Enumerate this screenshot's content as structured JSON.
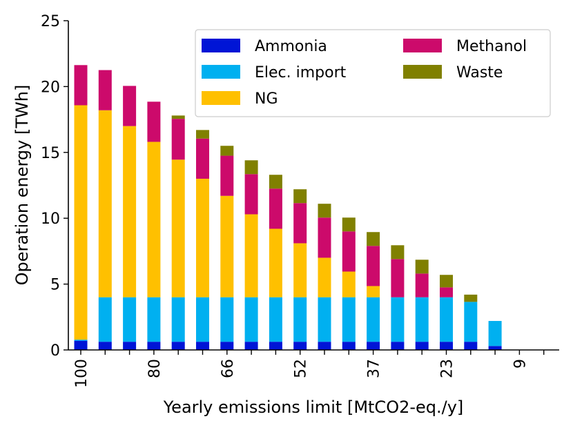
{
  "chart_data": {
    "type": "bar",
    "stacked": true,
    "title": "",
    "xlabel": "Yearly emissions limit [MtCO2-eq./y]",
    "ylabel": "Operation energy [TWh]",
    "ylim": [
      0,
      25
    ],
    "yticks": [
      0,
      5,
      10,
      15,
      20,
      25
    ],
    "x_tick_labels": [
      "100",
      "",
      "",
      "80",
      "",
      "",
      "66",
      "",
      "",
      "52",
      "",
      "",
      "37",
      "",
      "",
      "23",
      "",
      "",
      "9",
      ""
    ],
    "categories_count": 20,
    "legend_position": "top-right",
    "grid": false,
    "series": [
      {
        "name": "Ammonia",
        "color": "#0015d6",
        "values": [
          0.7,
          0.62,
          0.62,
          0.62,
          0.62,
          0.62,
          0.62,
          0.62,
          0.62,
          0.62,
          0.62,
          0.62,
          0.62,
          0.62,
          0.62,
          0.62,
          0.62,
          0.3,
          0,
          0
        ]
      },
      {
        "name": "Elec. import",
        "color": "#00b0f0",
        "values": [
          0.08,
          3.38,
          3.38,
          3.38,
          3.38,
          3.38,
          3.38,
          3.38,
          3.38,
          3.38,
          3.38,
          3.38,
          3.38,
          3.38,
          3.38,
          3.38,
          3.03,
          1.9,
          0,
          0
        ]
      },
      {
        "name": "NG",
        "color": "#ffc000",
        "values": [
          17.8,
          14.2,
          13.0,
          11.8,
          10.45,
          9.0,
          7.7,
          6.3,
          5.2,
          4.1,
          3.0,
          1.95,
          0.85,
          0,
          0,
          0,
          0,
          0,
          0,
          0
        ]
      },
      {
        "name": "Methanol",
        "color": "#cc0a6b",
        "values": [
          3.05,
          3.05,
          3.05,
          3.05,
          3.1,
          3.05,
          3.05,
          3.05,
          3.05,
          3.05,
          3.05,
          3.05,
          3.05,
          2.9,
          1.8,
          0.75,
          0,
          0,
          0,
          0
        ]
      },
      {
        "name": "Waste",
        "color": "#808000",
        "values": [
          0,
          0,
          0,
          0,
          0.25,
          0.65,
          0.75,
          1.05,
          1.05,
          1.05,
          1.05,
          1.05,
          1.05,
          1.05,
          1.05,
          0.95,
          0.55,
          0,
          0,
          0
        ]
      }
    ]
  }
}
